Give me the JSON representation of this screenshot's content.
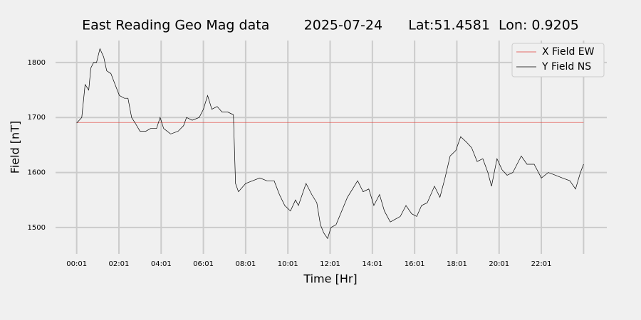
{
  "chart_data": {
    "type": "line",
    "title": "East Reading Geo Mag data        2025-07-24      Lat:51.4581  Lon: 0.9205",
    "xlabel": "Time  [Hr]",
    "ylabel": "Field  [nT]",
    "x": [
      0,
      0.24,
      0.4,
      0.57,
      0.67,
      0.8,
      0.94,
      1.1,
      1.28,
      1.42,
      1.62,
      1.82,
      2.02,
      2.26,
      2.43,
      2.6,
      2.77,
      3.0,
      3.27,
      3.5,
      3.78,
      3.95,
      4.12,
      4.45,
      4.8,
      5.06,
      5.2,
      5.47,
      5.8,
      6.0,
      6.2,
      6.4,
      6.65,
      6.88,
      7.15,
      7.42,
      7.52,
      7.66,
      8.0,
      8.33,
      8.67,
      9.0,
      9.35,
      9.6,
      9.85,
      10.12,
      10.36,
      10.5,
      10.86,
      11.13,
      11.37,
      11.54,
      11.7,
      11.88,
      12.04,
      12.28,
      12.55,
      12.82,
      13.06,
      13.3,
      13.56,
      13.83,
      14.07,
      14.34,
      14.57,
      14.85,
      15.08,
      15.32,
      15.59,
      15.86,
      16.1,
      16.33,
      16.6,
      16.94,
      17.2,
      17.44,
      17.68,
      17.95,
      18.18,
      18.46,
      18.7,
      18.96,
      19.23,
      19.47,
      19.64,
      19.9,
      20.14,
      20.38,
      20.65,
      21.05,
      21.32,
      21.66,
      22.0,
      22.33,
      22.67,
      23.0,
      23.35,
      23.62,
      23.85,
      24.0
    ],
    "series": [
      {
        "name": "X Field EW",
        "color": "#e0403a",
        "values": [
          1691,
          1691,
          1691,
          1691,
          1691,
          1691,
          1691,
          1691,
          1691,
          1691,
          1691,
          1691,
          1691,
          1691,
          1691,
          1691,
          1691,
          1691,
          1691,
          1691,
          1691,
          1691,
          1691,
          1691,
          1691,
          1691,
          1691,
          1691,
          1691,
          1691,
          1691,
          1691,
          1691,
          1691,
          1691,
          1691,
          1691,
          1691,
          1691,
          1691,
          1691,
          1691,
          1691,
          1691,
          1691,
          1691,
          1691,
          1691,
          1691,
          1691,
          1691,
          1691,
          1691,
          1691,
          1691,
          1691,
          1691,
          1691,
          1691,
          1691,
          1691,
          1691,
          1691,
          1691,
          1691,
          1691,
          1691,
          1691,
          1691,
          1691,
          1691,
          1691,
          1691,
          1691,
          1691,
          1691,
          1691,
          1691,
          1691,
          1691,
          1691,
          1691,
          1691,
          1691,
          1691,
          1691,
          1691,
          1691,
          1691,
          1691,
          1691,
          1691,
          1691,
          1691,
          1691,
          1691,
          1691,
          1691,
          1691,
          1691
        ]
      },
      {
        "name": "Y Field NS",
        "color": "#000000",
        "values": [
          1690,
          1700,
          1760,
          1750,
          1790,
          1800,
          1800,
          1825,
          1810,
          1785,
          1780,
          1760,
          1740,
          1735,
          1735,
          1700,
          1690,
          1675,
          1675,
          1680,
          1680,
          1700,
          1680,
          1670,
          1675,
          1685,
          1700,
          1695,
          1700,
          1715,
          1740,
          1715,
          1720,
          1710,
          1710,
          1705,
          1580,
          1565,
          1580,
          1585,
          1590,
          1585,
          1585,
          1560,
          1540,
          1530,
          1550,
          1540,
          1580,
          1560,
          1545,
          1505,
          1490,
          1480,
          1500,
          1505,
          1530,
          1555,
          1570,
          1585,
          1565,
          1570,
          1540,
          1560,
          1530,
          1510,
          1515,
          1520,
          1540,
          1525,
          1520,
          1540,
          1545,
          1575,
          1555,
          1590,
          1630,
          1640,
          1665,
          1655,
          1645,
          1620,
          1625,
          1600,
          1575,
          1625,
          1605,
          1595,
          1600,
          1630,
          1615,
          1615,
          1590,
          1600,
          1595,
          1590,
          1585,
          1570,
          1600,
          1615
        ]
      }
    ],
    "xlim": [
      -1,
      25.1
    ],
    "ylim": [
      1452,
      1840
    ],
    "xticks": [
      {
        "value": 0,
        "label": "00:01"
      },
      {
        "value": 2,
        "label": "02:01"
      },
      {
        "value": 4,
        "label": "04:01"
      },
      {
        "value": 6,
        "label": "06:01"
      },
      {
        "value": 8,
        "label": "08:01"
      },
      {
        "value": 10,
        "label": "10:01"
      },
      {
        "value": 12,
        "label": "12:01"
      },
      {
        "value": 14,
        "label": "14:01"
      },
      {
        "value": 16,
        "label": "16:01"
      },
      {
        "value": 18,
        "label": "18:01"
      },
      {
        "value": 20,
        "label": "20:01"
      },
      {
        "value": 22,
        "label": "22:01"
      },
      24
    ],
    "yticks": [
      1500,
      1600,
      1700,
      1800
    ],
    "grid": true,
    "legend": "upper right"
  }
}
